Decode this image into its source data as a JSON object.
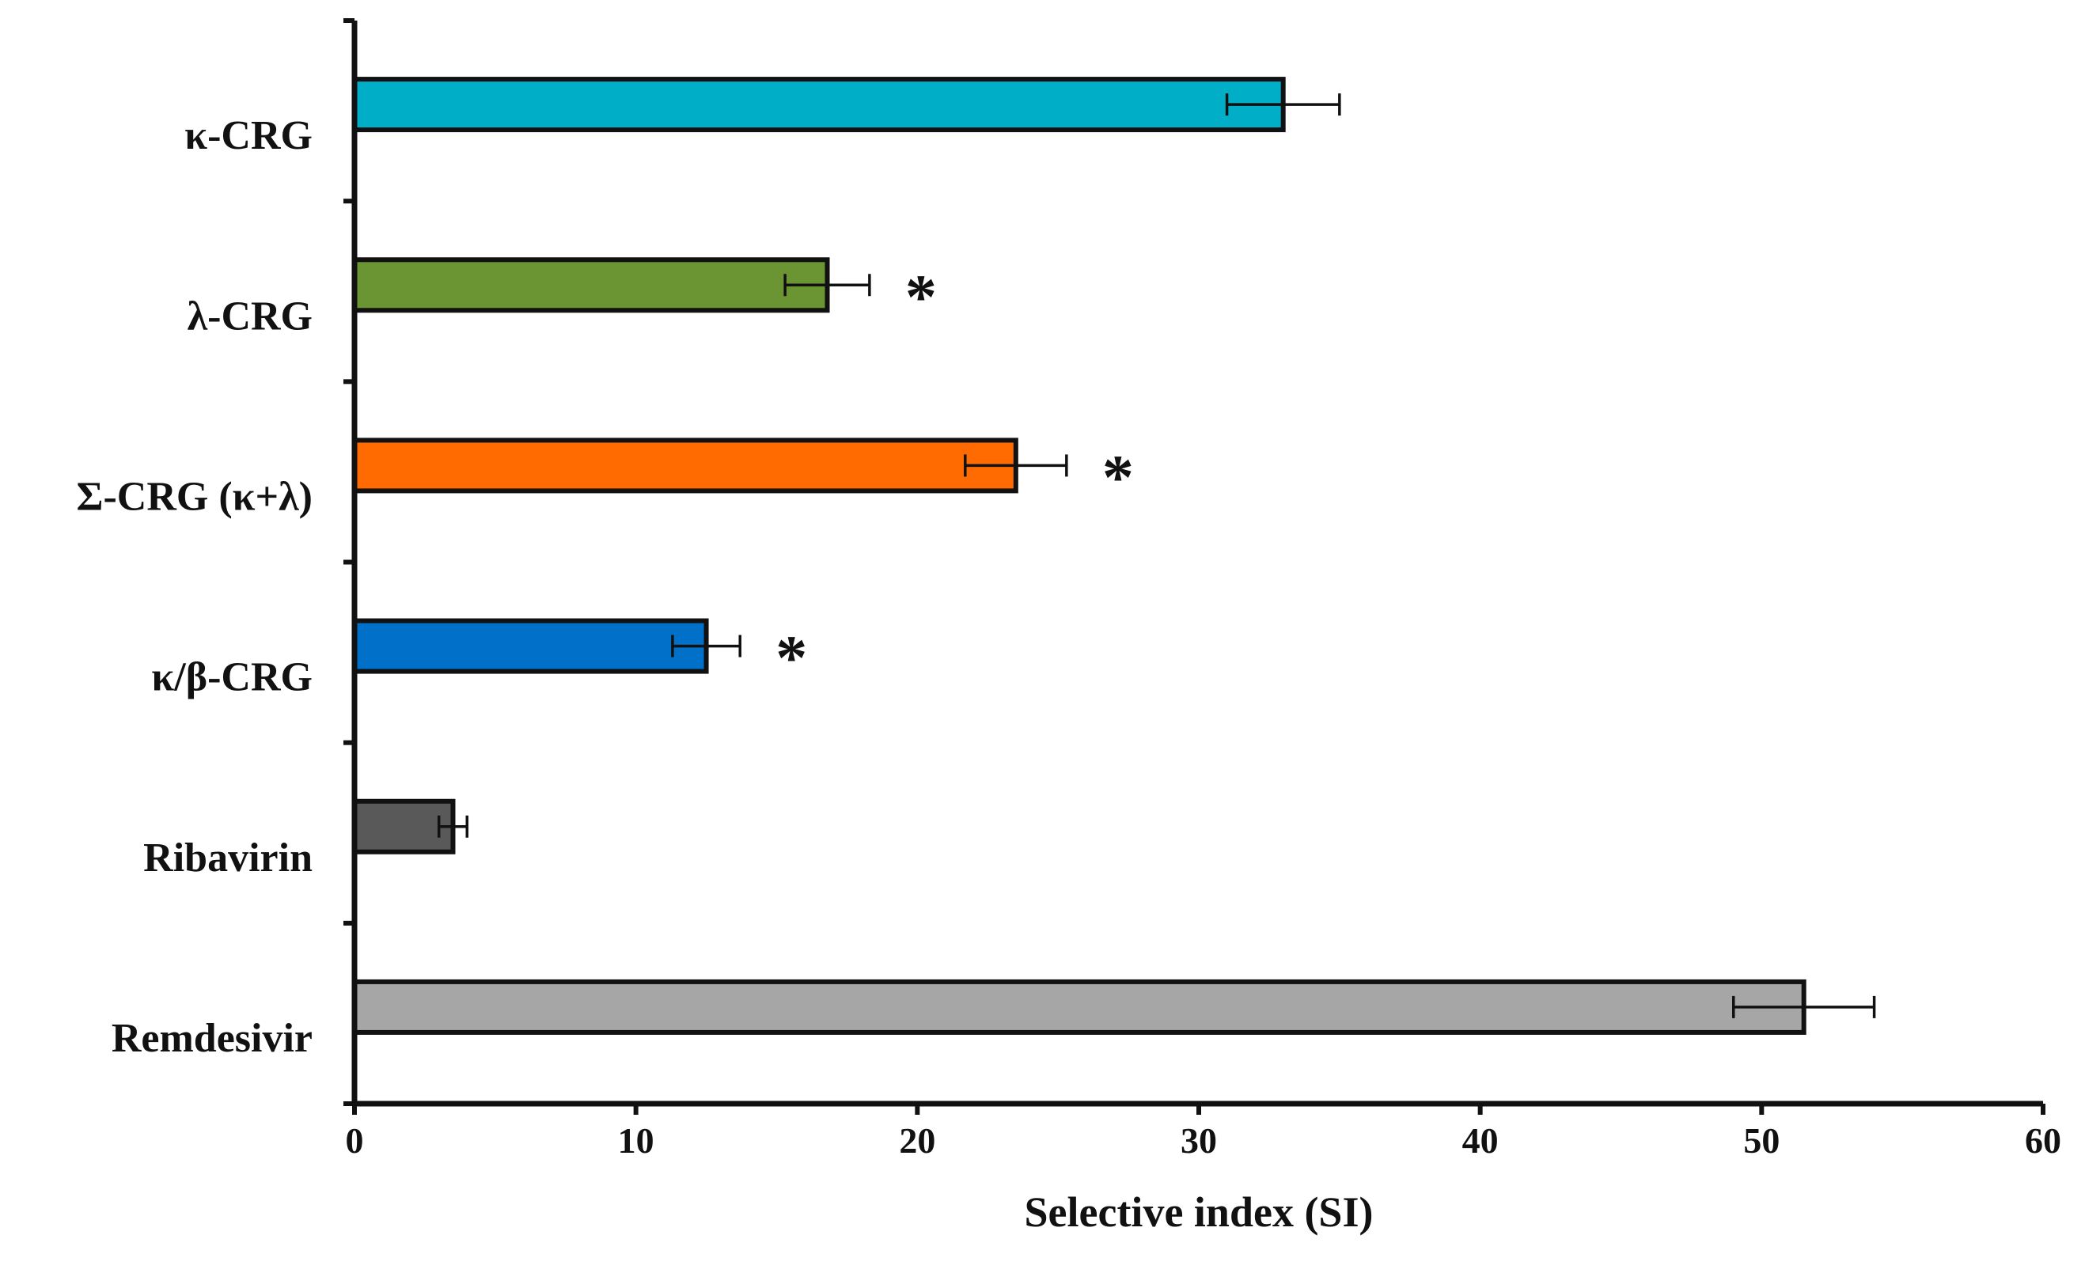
{
  "chart_data": {
    "type": "bar",
    "orientation": "horizontal",
    "xlabel": "Selective index (SI)",
    "xlim": [
      0,
      60
    ],
    "xticks": [
      "0",
      "10",
      "20",
      "30",
      "40",
      "50",
      "60"
    ],
    "grid": false,
    "legend": "none",
    "bars": [
      {
        "label": "κ-CRG",
        "value": 33.0,
        "error": 2.0,
        "color": "#00aec7",
        "significance": ""
      },
      {
        "label": "λ-CRG",
        "value": 16.8,
        "error": 1.5,
        "color": "#6b9433",
        "significance": "*"
      },
      {
        "label": "Σ-CRG (κ+λ)",
        "value": 23.5,
        "error": 1.8,
        "color": "#ff6b00",
        "significance": "*"
      },
      {
        "label": "κ/β-CRG",
        "value": 12.5,
        "error": 1.2,
        "color": "#0070c8",
        "significance": "*"
      },
      {
        "label": "Ribavirin",
        "value": 3.5,
        "error": 0.5,
        "color": "#595959",
        "significance": ""
      },
      {
        "label": "Remdesivir",
        "value": 51.5,
        "error": 2.5,
        "color": "#a6a6a6",
        "significance": ""
      }
    ]
  }
}
